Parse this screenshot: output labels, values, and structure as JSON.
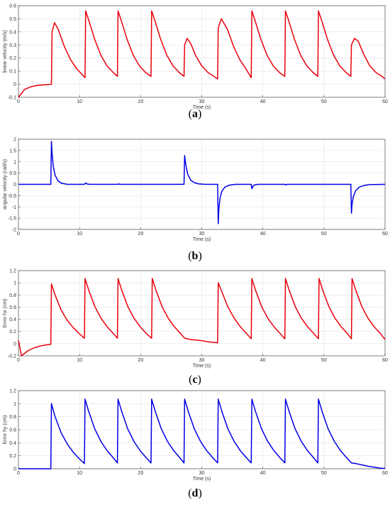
{
  "chart_data": [
    {
      "id": "a",
      "type": "line",
      "caption_letter": "a",
      "xlabel": "Time (s)",
      "ylabel": "linear velocity (m/s)",
      "xlim": [
        0,
        60
      ],
      "ylim": [
        -0.1,
        0.6
      ],
      "xticks": [
        0,
        10,
        20,
        30,
        40,
        50,
        60
      ],
      "yticks": [
        -0.1,
        0,
        0.1,
        0.2,
        0.3,
        0.4,
        0.5,
        0.6
      ],
      "grid": true,
      "color": "#e8000b",
      "series": [
        {
          "x": [
            0,
            1,
            2,
            3,
            4,
            5,
            5.4,
            5.5,
            5.9,
            6.5,
            7.5,
            8.5,
            9.5,
            10.5,
            10.9,
            11.0,
            11.5,
            12.5,
            13.5,
            14.5,
            15.5,
            16.2,
            16.3,
            16.8,
            17.8,
            18.8,
            19.8,
            20.8,
            21.7,
            21.8,
            22.3,
            23.3,
            24.3,
            25.3,
            26.3,
            27.1,
            27.2,
            27.6,
            28.2,
            29,
            30,
            31,
            32,
            32.6,
            32.7,
            33.2,
            34.2,
            35.2,
            36.2,
            37.2,
            38.1,
            38.2,
            38.7,
            39.7,
            40.7,
            41.7,
            42.7,
            43.6,
            43.7,
            44.2,
            45.2,
            46.2,
            47.2,
            48.2,
            49.0,
            49.1,
            49.6,
            50.6,
            51.6,
            52.6,
            53.6,
            54.4,
            54.5,
            55.0,
            55.6,
            56.5,
            57.5,
            58.5,
            59.5,
            60
          ],
          "y": [
            -0.1,
            -0.04,
            -0.02,
            -0.01,
            -0.005,
            -0.002,
            0,
            0.4,
            0.47,
            0.42,
            0.29,
            0.19,
            0.12,
            0.07,
            0.05,
            0.56,
            0.49,
            0.34,
            0.22,
            0.14,
            0.09,
            0.06,
            0.56,
            0.49,
            0.34,
            0.22,
            0.14,
            0.09,
            0.06,
            0.56,
            0.49,
            0.34,
            0.22,
            0.14,
            0.09,
            0.06,
            0.3,
            0.35,
            0.31,
            0.22,
            0.14,
            0.09,
            0.06,
            0.04,
            0.43,
            0.5,
            0.42,
            0.29,
            0.19,
            0.12,
            0.05,
            0.56,
            0.49,
            0.34,
            0.22,
            0.14,
            0.09,
            0.06,
            0.56,
            0.49,
            0.34,
            0.22,
            0.14,
            0.09,
            0.06,
            0.56,
            0.49,
            0.34,
            0.22,
            0.14,
            0.09,
            0.06,
            0.3,
            0.35,
            0.33,
            0.23,
            0.14,
            0.09,
            0.06,
            0.04
          ]
        }
      ]
    },
    {
      "id": "b",
      "type": "line",
      "caption_letter": "b",
      "xlabel": "Time (s)",
      "ylabel": "angular velocity (rad/s)",
      "xlim": [
        0,
        60
      ],
      "ylim": [
        -2,
        2
      ],
      "xticks": [
        0,
        10,
        20,
        30,
        40,
        50,
        60
      ],
      "yticks": [
        -2,
        -1.5,
        -1,
        -0.5,
        0,
        0.5,
        1,
        1.5,
        2
      ],
      "grid": true,
      "color": "#0000e6",
      "series": [
        {
          "x": [
            0,
            5.3,
            5.4,
            5.5,
            5.7,
            6.0,
            6.5,
            7,
            8,
            10.8,
            11.0,
            11.2,
            11.6,
            16.3,
            16.4,
            16.6,
            27.1,
            27.2,
            27.4,
            27.7,
            28.2,
            28.8,
            29.5,
            30.5,
            32.6,
            32.7,
            32.8,
            33.0,
            33.3,
            33.8,
            34.5,
            35.5,
            38.1,
            38.2,
            38.35,
            38.6,
            39.2,
            43.6,
            43.7,
            44.0,
            54.4,
            54.5,
            54.6,
            54.8,
            55.2,
            55.8,
            56.6,
            57.5,
            60
          ],
          "y": [
            0,
            0,
            1.9,
            1.4,
            0.8,
            0.4,
            0.15,
            0.05,
            0,
            0,
            0.06,
            0.02,
            0,
            0,
            0.02,
            0,
            0,
            1.28,
            0.85,
            0.45,
            0.18,
            0.07,
            0.02,
            0,
            0,
            -1.75,
            -1.1,
            -0.6,
            -0.3,
            -0.12,
            -0.04,
            0,
            0,
            -0.2,
            -0.1,
            -0.03,
            0,
            0,
            -0.03,
            0,
            0,
            -1.28,
            -0.9,
            -0.55,
            -0.28,
            -0.12,
            -0.05,
            -0.01,
            0
          ]
        }
      ]
    },
    {
      "id": "c",
      "type": "line",
      "caption_letter": "c",
      "xlabel": "Time (s)",
      "ylabel": "Error hx (cm)",
      "xlim": [
        0,
        60
      ],
      "ylim": [
        -0.2,
        1.2
      ],
      "xticks": [
        0,
        10,
        20,
        30,
        40,
        50,
        60
      ],
      "yticks": [
        -0.2,
        0,
        0.2,
        0.4,
        0.6,
        0.8,
        1,
        1.2
      ],
      "grid": true,
      "color": "#e8000b",
      "series": [
        {
          "x": [
            0,
            0.5,
            1.5,
            2.5,
            3.5,
            4.5,
            5.3,
            5.4,
            6,
            7,
            8,
            9,
            10,
            10.8,
            10.9,
            11.5,
            12.5,
            13.5,
            14.5,
            15.5,
            16.2,
            16.3,
            16.9,
            17.9,
            18.9,
            19.9,
            20.9,
            21.8,
            21.9,
            22.5,
            23.5,
            24.5,
            25.5,
            26.5,
            27.2,
            28,
            29,
            30,
            31,
            32,
            32.6,
            32.7,
            33.3,
            34.3,
            35.3,
            36.3,
            37.3,
            38.1,
            38.2,
            38.8,
            39.8,
            40.8,
            41.8,
            42.8,
            43.6,
            43.7,
            44.3,
            45.3,
            46.3,
            47.3,
            48.3,
            49.1,
            49.2,
            49.8,
            50.8,
            51.8,
            52.8,
            53.8,
            54.5,
            54.6,
            55.2,
            56.2,
            57.2,
            58.2,
            59.2,
            60
          ],
          "y": [
            0.05,
            -0.2,
            -0.12,
            -0.07,
            -0.04,
            -0.02,
            -0.01,
            0.98,
            0.8,
            0.55,
            0.38,
            0.26,
            0.16,
            0.09,
            1.07,
            0.88,
            0.61,
            0.42,
            0.28,
            0.17,
            0.09,
            1.07,
            0.88,
            0.61,
            0.42,
            0.28,
            0.17,
            0.09,
            1.07,
            0.88,
            0.61,
            0.42,
            0.28,
            0.17,
            0.09,
            0.07,
            0.06,
            0.05,
            0.03,
            0.02,
            0.015,
            1.0,
            0.85,
            0.6,
            0.42,
            0.28,
            0.17,
            0.08,
            1.07,
            0.88,
            0.61,
            0.42,
            0.28,
            0.17,
            0.08,
            1.07,
            0.88,
            0.61,
            0.42,
            0.28,
            0.17,
            0.08,
            1.07,
            0.88,
            0.61,
            0.42,
            0.28,
            0.17,
            0.08,
            1.07,
            0.88,
            0.61,
            0.42,
            0.28,
            0.17,
            0.07
          ]
        }
      ]
    },
    {
      "id": "d",
      "type": "line",
      "caption_letter": "d",
      "xlabel": "Time (s)",
      "ylabel": "Error hy (cm)",
      "xlim": [
        0,
        60
      ],
      "ylim": [
        0,
        1.2
      ],
      "xticks": [
        0,
        10,
        20,
        30,
        40,
        50,
        60
      ],
      "yticks": [
        0,
        0.2,
        0.4,
        0.6,
        0.8,
        1,
        1.2
      ],
      "grid": true,
      "color": "#0000e6",
      "series": [
        {
          "x": [
            0,
            5.3,
            5.4,
            6,
            7,
            8,
            9,
            10,
            10.8,
            10.9,
            11.5,
            12.5,
            13.5,
            14.5,
            15.5,
            16.2,
            16.3,
            16.9,
            17.9,
            18.9,
            19.9,
            20.9,
            21.7,
            21.8,
            22.4,
            23.4,
            24.4,
            25.4,
            26.4,
            27.1,
            27.2,
            27.8,
            28.8,
            29.8,
            30.8,
            31.8,
            32.6,
            32.7,
            33.3,
            34.3,
            35.3,
            36.3,
            37.3,
            38.1,
            38.2,
            38.8,
            39.8,
            40.8,
            41.8,
            42.8,
            43.6,
            43.7,
            44.3,
            45.3,
            46.3,
            47.3,
            48.3,
            49.0,
            49.1,
            49.7,
            50.7,
            51.7,
            52.7,
            53.7,
            54.5,
            55.2,
            56.2,
            57.2,
            58.2,
            59.2,
            60
          ],
          "y": [
            0,
            0,
            1.0,
            0.8,
            0.55,
            0.38,
            0.25,
            0.15,
            0.08,
            1.07,
            0.88,
            0.61,
            0.42,
            0.28,
            0.17,
            0.09,
            1.07,
            0.88,
            0.61,
            0.42,
            0.28,
            0.17,
            0.09,
            1.07,
            0.88,
            0.61,
            0.42,
            0.28,
            0.17,
            0.09,
            1.07,
            0.88,
            0.61,
            0.42,
            0.28,
            0.17,
            0.09,
            1.07,
            0.88,
            0.61,
            0.42,
            0.28,
            0.17,
            0.09,
            1.07,
            0.88,
            0.61,
            0.42,
            0.28,
            0.17,
            0.09,
            1.07,
            0.88,
            0.61,
            0.42,
            0.28,
            0.17,
            0.09,
            1.07,
            0.88,
            0.61,
            0.42,
            0.28,
            0.17,
            0.09,
            0.08,
            0.06,
            0.04,
            0.025,
            0.01,
            0.005
          ]
        }
      ]
    }
  ]
}
